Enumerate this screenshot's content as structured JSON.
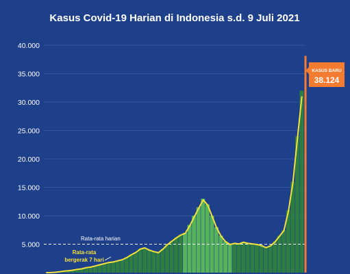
{
  "title": "Kasus Covid-19 Harian di Indonesia s.d. 9 Juli 2021",
  "colors": {
    "background": "#1e3f8a",
    "bars": "#2e7d43",
    "bars_highlight": "#56b35c",
    "average_line": "#f5e23a",
    "highlight": "#f47c30",
    "grid": "#3d5ea6",
    "dashed": "#ffffff"
  },
  "chart_data": {
    "type": "bar",
    "title": "Kasus Covid-19 Harian di Indonesia s.d. 9 Juli 2021",
    "xlabel": "",
    "ylabel": "",
    "ylim": [
      0,
      40000
    ],
    "yticks": [
      {
        "value": 5000,
        "label": "5.000"
      },
      {
        "value": 10000,
        "label": "10.000"
      },
      {
        "value": 15000,
        "label": "15.000"
      },
      {
        "value": 20000,
        "label": "20.000"
      },
      {
        "value": 25000,
        "label": "25.000"
      },
      {
        "value": 30000,
        "label": "30.000"
      },
      {
        "value": 35000,
        "label": "35.000"
      },
      {
        "value": 40000,
        "label": "40.000"
      }
    ],
    "grid": true,
    "series": [
      {
        "type": "bar",
        "note": "daily cases, sampled every 7 days",
        "values": [
          0,
          20,
          60,
          150,
          300,
          350,
          450,
          600,
          700,
          900,
          1000,
          1200,
          1400,
          1600,
          1800,
          1900,
          2100,
          2300,
          2700,
          3200,
          3600,
          4200,
          4400,
          4000,
          3800,
          3600,
          4200,
          5000,
          5600,
          6200,
          6700,
          7000,
          8400,
          10000,
          11500,
          13000,
          12000,
          10000,
          8000,
          6500,
          5500,
          5000,
          5200,
          5100,
          5400,
          5200,
          5100,
          5000,
          4800,
          4500,
          4800,
          5500,
          6500,
          7500,
          11000,
          16000,
          24000,
          32000
        ]
      },
      {
        "name": "Rata-rata bergerak 7 hari",
        "type": "line",
        "values": [
          0,
          15,
          55,
          140,
          280,
          340,
          430,
          580,
          680,
          880,
          980,
          1180,
          1380,
          1580,
          1780,
          1880,
          2080,
          2280,
          2650,
          3150,
          3550,
          4150,
          4350,
          3950,
          3700,
          3500,
          4100,
          4900,
          5500,
          6100,
          6600,
          6900,
          8200,
          9800,
          11300,
          12800,
          11900,
          9900,
          7900,
          6400,
          5450,
          4950,
          5150,
          5050,
          5350,
          5150,
          5050,
          4950,
          4750,
          4400,
          4700,
          5400,
          6400,
          7400,
          10800,
          15800,
          23500,
          31000
        ]
      }
    ],
    "last_value": 38124,
    "reference_line": {
      "value": 5000,
      "label": "Rata-rata harian"
    },
    "annotations": {
      "moving_average_label_line1": "Rata-rata",
      "moving_average_label_line2": "bergerak 7 hari",
      "new_cases_label": "KASUS BARU",
      "new_cases_value": "38.124"
    }
  }
}
